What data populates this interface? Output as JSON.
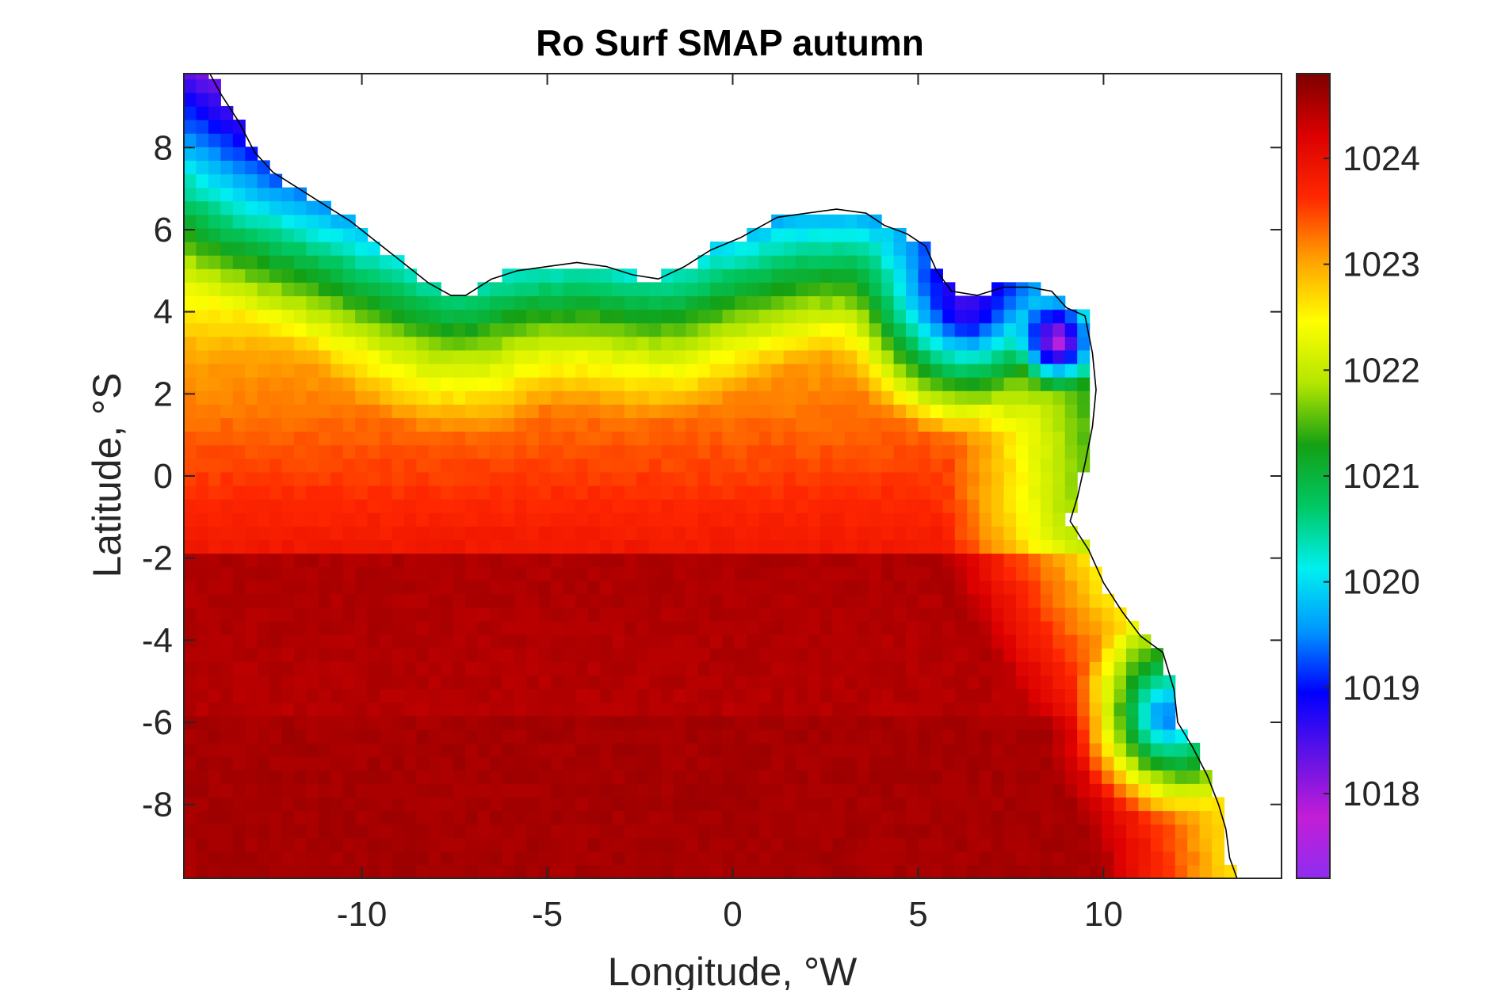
{
  "chart_data": {
    "type": "heatmap",
    "title": "Ro Surf SMAP autumn",
    "xlabel": "Longitude, °W",
    "ylabel": "Latitude, °S",
    "xlim": [
      -14.8,
      14.8
    ],
    "ylim": [
      -9.8,
      9.8
    ],
    "xticks": [
      -10,
      -5,
      0,
      5,
      10
    ],
    "yticks": [
      -8,
      -6,
      -4,
      -2,
      0,
      2,
      4,
      6,
      8
    ],
    "grid": false,
    "colormap": "rainbow",
    "colorbar": {
      "location": "right",
      "range": [
        1017.2,
        1024.8
      ],
      "ticks": [
        1018,
        1019,
        1020,
        1021,
        1022,
        1023,
        1024
      ],
      "colors": [
        "#8f2df0",
        "#c21ed6",
        "#5f12e6",
        "#0000ff",
        "#0096ff",
        "#00f0f0",
        "#00c864",
        "#14a014",
        "#b4e600",
        "#ffff00",
        "#ffa000",
        "#ff2800",
        "#dc0000",
        "#7d0000"
      ]
    },
    "grid_resolution_deg": 0.33,
    "field_description_values": {
      "open_ocean_south": 1024.5,
      "open_ocean_central": 1023.9,
      "northern_band": 1022.5,
      "coastal_minimum": 1018.2
    },
    "coastline_lon_lat": [
      [
        -14.1,
        9.8
      ],
      [
        -13.8,
        9.3
      ],
      [
        -13.3,
        8.6
      ],
      [
        -12.9,
        7.9
      ],
      [
        -12.4,
        7.4
      ],
      [
        -11.7,
        7.0
      ],
      [
        -11.0,
        6.6
      ],
      [
        -10.3,
        6.2
      ],
      [
        -9.6,
        5.7
      ],
      [
        -8.9,
        5.2
      ],
      [
        -8.2,
        4.7
      ],
      [
        -7.6,
        4.4
      ],
      [
        -7.2,
        4.4
      ],
      [
        -6.5,
        4.8
      ],
      [
        -5.8,
        5.0
      ],
      [
        -5.0,
        5.1
      ],
      [
        -4.2,
        5.2
      ],
      [
        -3.4,
        5.1
      ],
      [
        -2.7,
        4.9
      ],
      [
        -2.0,
        4.8
      ],
      [
        -1.3,
        5.1
      ],
      [
        -0.6,
        5.5
      ],
      [
        0.2,
        5.8
      ],
      [
        1.2,
        6.3
      ],
      [
        2.0,
        6.4
      ],
      [
        2.8,
        6.5
      ],
      [
        3.6,
        6.4
      ],
      [
        4.1,
        6.1
      ],
      [
        4.7,
        5.9
      ],
      [
        5.2,
        5.6
      ],
      [
        5.5,
        5.0
      ],
      [
        5.9,
        4.5
      ],
      [
        6.6,
        4.4
      ],
      [
        7.3,
        4.6
      ],
      [
        8.0,
        4.6
      ],
      [
        8.6,
        4.5
      ],
      [
        9.0,
        4.1
      ],
      [
        9.5,
        3.9
      ],
      [
        9.7,
        3.0
      ],
      [
        9.8,
        2.1
      ],
      [
        9.7,
        1.2
      ],
      [
        9.5,
        0.3
      ],
      [
        9.3,
        -0.5
      ],
      [
        9.1,
        -1.1
      ],
      [
        9.6,
        -1.8
      ],
      [
        10.0,
        -2.6
      ],
      [
        10.5,
        -3.3
      ],
      [
        11.0,
        -3.9
      ],
      [
        11.6,
        -4.3
      ],
      [
        11.9,
        -5.2
      ],
      [
        12.0,
        -6.0
      ],
      [
        12.4,
        -6.6
      ],
      [
        12.8,
        -7.3
      ],
      [
        13.1,
        -8.0
      ],
      [
        13.3,
        -8.6
      ],
      [
        13.4,
        -9.3
      ],
      [
        13.6,
        -9.8
      ]
    ]
  }
}
